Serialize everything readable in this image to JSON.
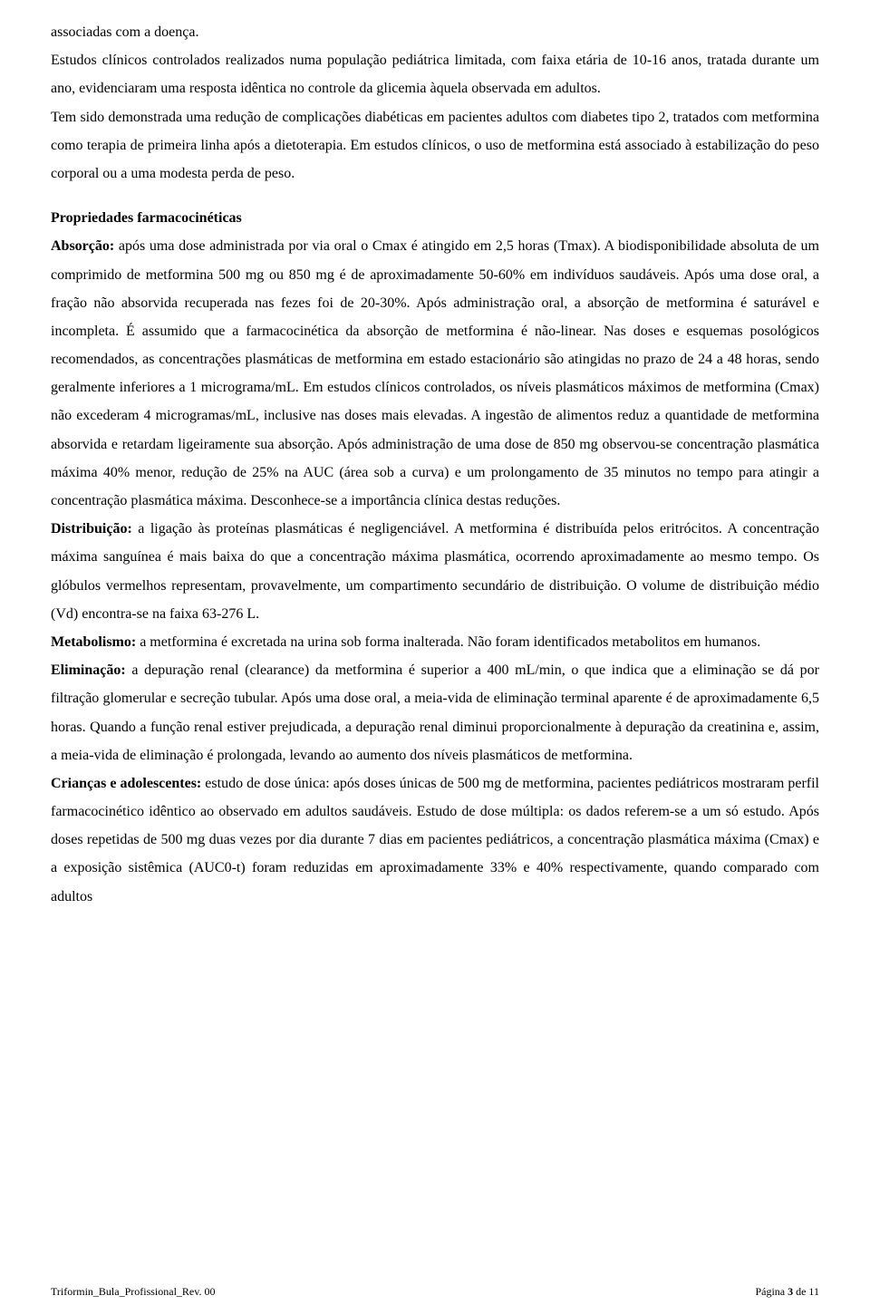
{
  "p_lead": "associadas com a doença.",
  "p1": "Estudos clínicos controlados realizados numa população pediátrica limitada, com faixa etária de 10-16 anos, tratada durante um ano, evidenciaram uma resposta idêntica no controle da glicemia àquela observada em adultos.",
  "p2": "Tem sido demonstrada uma redução de complicações diabéticas em pacientes adultos com diabetes tipo 2, tratados com metformina como terapia de primeira linha após a dietoterapia. Em estudos clínicos, o uso de metformina está associado à estabilização do peso corporal ou a uma modesta perda de peso.",
  "sect_title": "Propriedades farmacocinéticas",
  "abs_label": "Absorção:",
  "abs_text": " após uma dose administrada por via oral o Cmax é atingido em 2,5 horas (Tmax). A biodisponibilidade absoluta de um comprimido de metformina 500 mg ou 850 mg é de aproximadamente 50-60% em indivíduos saudáveis. Após uma dose oral, a fração não absorvida recuperada nas fezes foi de 20-30%. Após administração oral, a absorção de metformina é saturável e incompleta. É assumido que a farmacocinética da absorção de metformina é não-linear. Nas doses e esquemas posológicos recomendados, as concentrações plasmáticas de metformina em estado estacionário são atingidas no prazo de 24 a 48 horas, sendo geralmente inferiores a 1 micrograma/mL. Em estudos clínicos controlados, os níveis plasmáticos máximos de metformina (Cmax) não excederam 4 microgramas/mL, inclusive nas doses mais elevadas. A ingestão de alimentos reduz a quantidade de metformina absorvida e retardam ligeiramente sua absorção. Após administração de uma dose de 850 mg observou-se concentração plasmática máxima 40% menor, redução de 25% na AUC (área sob a curva) e um prolongamento de 35 minutos no tempo para atingir a concentração plasmática máxima. Desconhece-se a importância clínica destas reduções.",
  "dist_label": "Distribuição:",
  "dist_text": " a ligação às proteínas plasmáticas é negligenciável. A metformina é distribuída pelos eritrócitos. A concentração máxima sanguínea é mais baixa do que a concentração máxima plasmática, ocorrendo aproximadamente ao mesmo tempo. Os glóbulos vermelhos representam, provavelmente, um compartimento secundário de distribuição. O volume de distribuição médio (Vd) encontra-se na faixa 63-276 L.",
  "metab_label": "Metabolismo:",
  "metab_text": " a metformina é excretada na urina sob forma inalterada. Não foram identificados metabolitos em humanos.",
  "elim_label": "Eliminação:",
  "elim_text": " a depuração renal (clearance) da metformina é superior a 400 mL/min, o que indica que a eliminação se dá por filtração glomerular e secreção tubular. Após uma dose oral, a meia-vida de eliminação terminal aparente é de aproximadamente 6,5 horas. Quando a função renal estiver prejudicada, a depuração renal diminui proporcionalmente à depuração da creatinina e, assim, a meia-vida de eliminação é prolongada, levando ao aumento dos níveis plasmáticos de metformina.",
  "child_label": "Crianças e adolescentes:",
  "child_text": " estudo de dose única: após doses únicas de 500 mg de metformina, pacientes pediátricos mostraram perfil farmacocinético idêntico ao observado em adultos saudáveis. Estudo de dose múltipla: os dados referem-se a um só estudo. Após doses repetidas de 500 mg duas vezes por dia durante 7 dias em pacientes pediátricos, a concentração plasmática máxima (Cmax) e a exposição sistêmica (AUC0-t) foram reduzidas em aproximadamente 33% e 40% respectivamente, quando comparado com adultos",
  "footer_left": "Triformin_Bula_Profissional_Rev. 00",
  "footer_right_prefix": "Página ",
  "footer_page_num": "3",
  "footer_right_suffix": " de 11"
}
